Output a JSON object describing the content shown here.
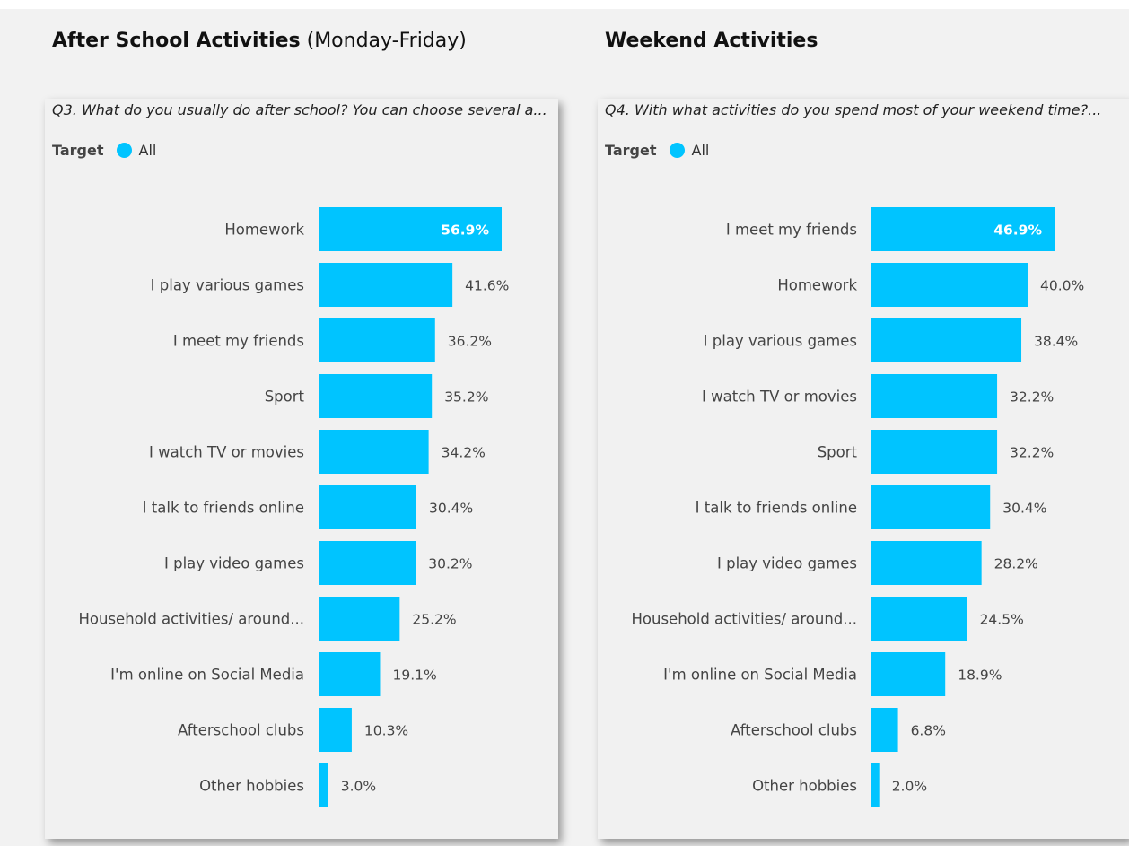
{
  "colors": {
    "bar": "#00c4ff",
    "text": "#444444"
  },
  "chart_data": [
    {
      "type": "bar",
      "orientation": "horizontal",
      "heading_bold": "After School Activities",
      "heading_rest": "(Monday-Friday)",
      "title": "Q3. What do you usually do after school? You can choose several a...",
      "legend": {
        "title": "Target",
        "entries": [
          "All"
        ]
      },
      "categories": [
        "Homework",
        "I play various games",
        "I meet my friends",
        "Sport",
        "I watch TV or movies",
        "I talk to friends online",
        "I play video games",
        "Household activities/ around...",
        "I'm online on Social Media",
        "Afterschool clubs",
        "Other hobbies"
      ],
      "values": [
        56.9,
        41.6,
        36.2,
        35.2,
        34.2,
        30.4,
        30.2,
        25.2,
        19.1,
        10.3,
        3.0
      ],
      "value_labels": [
        "56.9%",
        "41.6%",
        "36.2%",
        "35.2%",
        "34.2%",
        "30.4%",
        "30.2%",
        "25.2%",
        "19.1%",
        "10.3%",
        "3.0%"
      ],
      "xlim": [
        0,
        56.9
      ]
    },
    {
      "type": "bar",
      "orientation": "horizontal",
      "heading_bold": "Weekend Activities",
      "heading_rest": "",
      "title": "Q4. With what activities do you spend most of your weekend time?...",
      "legend": {
        "title": "Target",
        "entries": [
          "All"
        ]
      },
      "categories": [
        "I meet my friends",
        "Homework",
        "I play various games",
        "I watch TV or movies",
        "Sport",
        "I talk to friends online",
        "I play video games",
        "Household activities/ around...",
        "I'm online on Social Media",
        "Afterschool clubs",
        "Other hobbies"
      ],
      "values": [
        46.9,
        40.0,
        38.4,
        32.2,
        32.2,
        30.4,
        28.2,
        24.5,
        18.9,
        6.8,
        2.0
      ],
      "value_labels": [
        "46.9%",
        "40.0%",
        "38.4%",
        "32.2%",
        "32.2%",
        "30.4%",
        "28.2%",
        "24.5%",
        "18.9%",
        "6.8%",
        "2.0%"
      ],
      "xlim": [
        0,
        46.9
      ]
    }
  ]
}
